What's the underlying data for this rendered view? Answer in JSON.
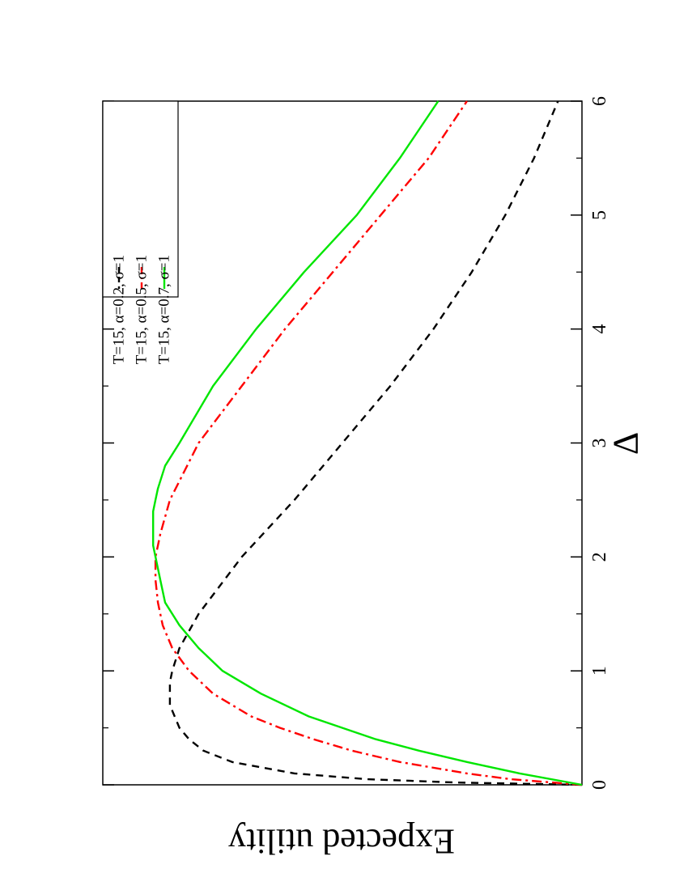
{
  "chart_data": {
    "type": "line",
    "rotation": "rotated 90 degrees clockwise (landscape figure on portrait page)",
    "xlabel": "Δ",
    "ylabel": "Expected utility",
    "xlim": [
      0,
      6
    ],
    "ylim": [
      0,
      1
    ],
    "x_ticks": [
      0,
      1,
      2,
      3,
      4,
      5,
      6
    ],
    "x_tick_labels": [
      "0",
      "1",
      "2",
      "3",
      "4",
      "5",
      "6"
    ],
    "y_tick_labels": [],
    "grid": false,
    "legend_position": "top-right",
    "series": [
      {
        "name": "T=15, α=0.2, σ=1",
        "color": "#000000",
        "style": "dashed",
        "x": [
          0.0,
          0.02,
          0.05,
          0.1,
          0.2,
          0.3,
          0.4,
          0.5,
          0.6,
          0.7,
          0.8,
          0.9,
          1.0,
          1.2,
          1.5,
          2.0,
          2.5,
          3.0,
          3.5,
          4.0,
          4.5,
          5.0,
          5.5,
          6.0
        ],
        "y": [
          0.0,
          0.26,
          0.45,
          0.6,
          0.73,
          0.79,
          0.82,
          0.84,
          0.85,
          0.86,
          0.86,
          0.86,
          0.855,
          0.84,
          0.8,
          0.71,
          0.6,
          0.5,
          0.4,
          0.31,
          0.23,
          0.16,
          0.1,
          0.05
        ]
      },
      {
        "name": "T=15, α=0.5, σ=1",
        "color": "#ff0000",
        "style": "dash-dot",
        "x": [
          0.0,
          0.05,
          0.1,
          0.2,
          0.3,
          0.4,
          0.5,
          0.6,
          0.8,
          1.0,
          1.2,
          1.4,
          1.6,
          1.8,
          1.9,
          2.0,
          2.1,
          2.2,
          2.5,
          3.0,
          3.5,
          4.0,
          4.5,
          5.0,
          5.5,
          6.0
        ],
        "y": [
          0.0,
          0.15,
          0.24,
          0.38,
          0.48,
          0.56,
          0.63,
          0.69,
          0.77,
          0.82,
          0.855,
          0.875,
          0.885,
          0.89,
          0.89,
          0.89,
          0.885,
          0.88,
          0.86,
          0.8,
          0.71,
          0.62,
          0.52,
          0.42,
          0.32,
          0.24
        ]
      },
      {
        "name": "T=15, α=0.7, σ=1",
        "color": "#00e600",
        "style": "solid",
        "x": [
          0.0,
          0.1,
          0.2,
          0.3,
          0.4,
          0.5,
          0.6,
          0.8,
          1.0,
          1.2,
          1.4,
          1.6,
          1.8,
          2.0,
          2.1,
          2.2,
          2.3,
          2.4,
          2.5,
          2.6,
          2.8,
          3.0,
          3.5,
          4.0,
          4.5,
          5.0,
          5.5,
          6.0
        ],
        "y": [
          0.0,
          0.13,
          0.24,
          0.34,
          0.43,
          0.5,
          0.57,
          0.67,
          0.75,
          0.8,
          0.84,
          0.87,
          0.88,
          0.89,
          0.895,
          0.895,
          0.895,
          0.895,
          0.89,
          0.885,
          0.87,
          0.84,
          0.77,
          0.68,
          0.58,
          0.47,
          0.38,
          0.3
        ]
      }
    ]
  }
}
